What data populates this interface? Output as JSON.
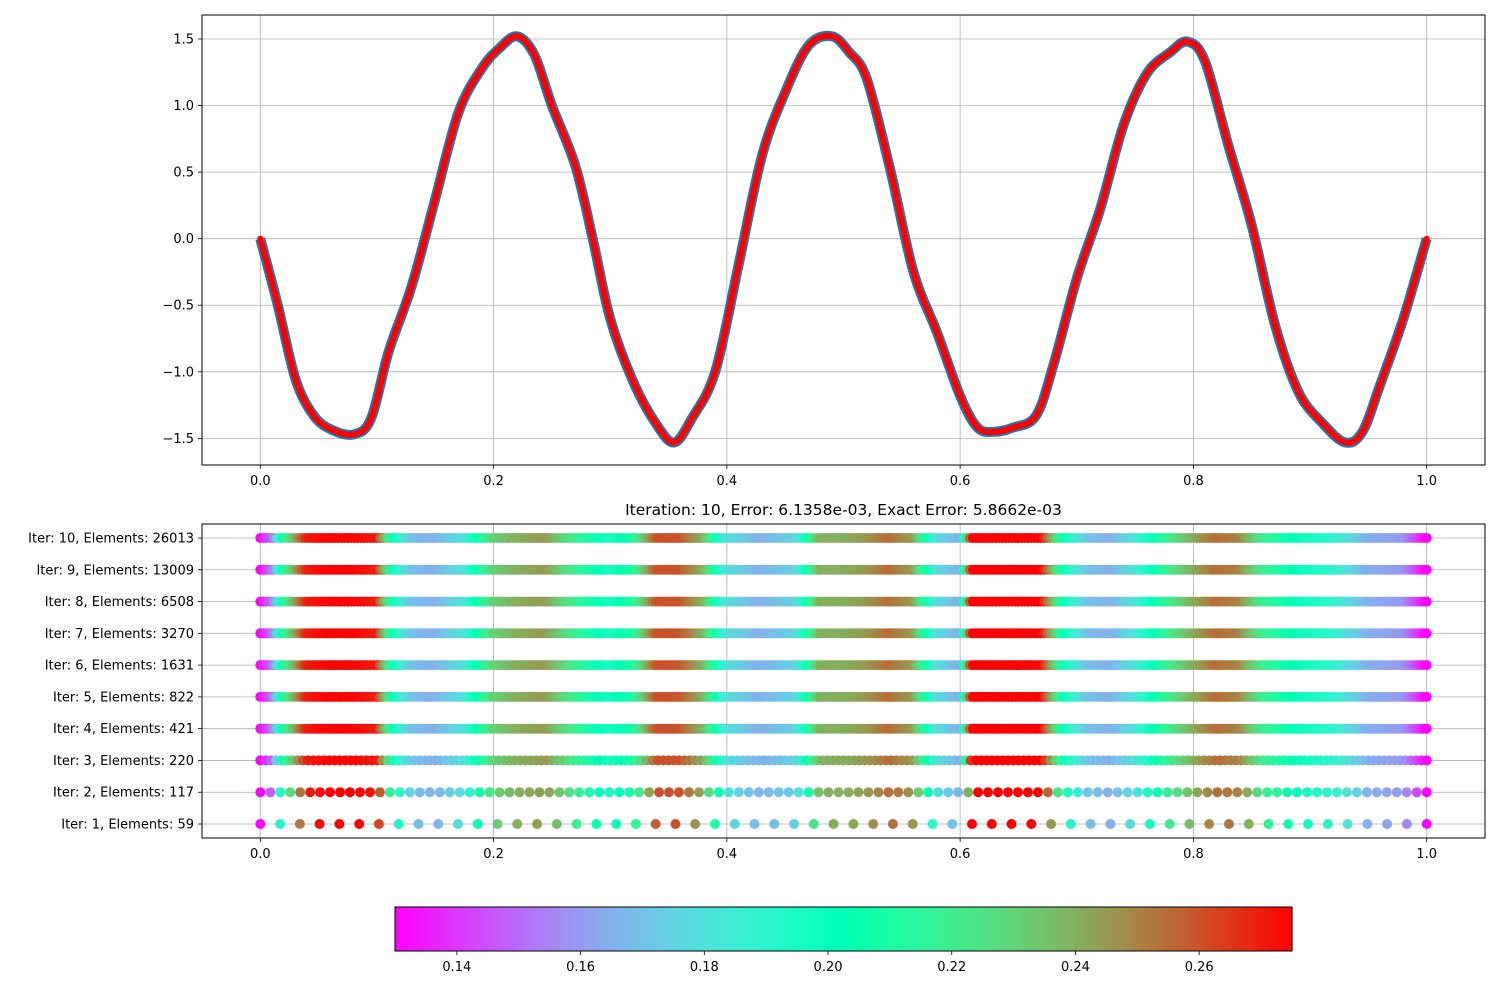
{
  "chart_data": [
    {
      "type": "line",
      "title": "",
      "xlabel": "",
      "ylabel": "",
      "xlim": [
        -0.05,
        1.05
      ],
      "ylim": [
        -1.7,
        1.68
      ],
      "grid": true,
      "x_ticks": [
        "0.0",
        "0.2",
        "0.4",
        "0.6",
        "0.8",
        "1.0"
      ],
      "y_ticks": [
        "−1.5",
        "−1.0",
        "−0.5",
        "0.0",
        "0.5",
        "1.0",
        "1.5"
      ],
      "series": [
        {
          "style": "thick red line over blue outline",
          "color": "#ff0000",
          "outline_color": "#1f77b4",
          "x": [
            0,
            0.015,
            0.03,
            0.045,
            0.06,
            0.08,
            0.095,
            0.11,
            0.13,
            0.15,
            0.17,
            0.19,
            0.205,
            0.22,
            0.235,
            0.25,
            0.27,
            0.285,
            0.3,
            0.32,
            0.34,
            0.355,
            0.37,
            0.39,
            0.41,
            0.43,
            0.45,
            0.47,
            0.49,
            0.505,
            0.52,
            0.54,
            0.56,
            0.58,
            0.6,
            0.615,
            0.63,
            0.645,
            0.665,
            0.68,
            0.7,
            0.72,
            0.74,
            0.76,
            0.78,
            0.795,
            0.81,
            0.83,
            0.85,
            0.87,
            0.89,
            0.91,
            0.93,
            0.945,
            0.96,
            0.98,
            1.0
          ],
          "y": [
            0.0,
            -0.5,
            -1.05,
            -1.32,
            -1.43,
            -1.47,
            -1.35,
            -0.85,
            -0.35,
            0.3,
            0.95,
            1.28,
            1.43,
            1.52,
            1.38,
            1.0,
            0.55,
            0.0,
            -0.6,
            -1.08,
            -1.4,
            -1.53,
            -1.35,
            -1.0,
            -0.2,
            0.62,
            1.1,
            1.45,
            1.52,
            1.4,
            1.2,
            0.52,
            -0.25,
            -0.7,
            -1.18,
            -1.42,
            -1.45,
            -1.42,
            -1.33,
            -0.95,
            -0.3,
            0.22,
            0.85,
            1.24,
            1.4,
            1.48,
            1.33,
            0.7,
            0.1,
            -0.65,
            -1.15,
            -1.38,
            -1.53,
            -1.45,
            -1.1,
            -0.6,
            0.0
          ]
        }
      ]
    },
    {
      "type": "scatter",
      "title": "Iteration: 10, Error: 6.1358e-03, Exact Error: 5.8662e-03",
      "xlim": [
        -0.05,
        1.05
      ],
      "grid": true,
      "x_ticks": [
        "0.0",
        "0.2",
        "0.4",
        "0.6",
        "0.8",
        "1.0"
      ],
      "rows": [
        {
          "label": "Iter: 10, Elements: 26013",
          "elements": 26013
        },
        {
          "label": "Iter: 9, Elements: 13009",
          "elements": 13009
        },
        {
          "label": "Iter: 8, Elements: 6508",
          "elements": 6508
        },
        {
          "label": "Iter: 7, Elements: 3270",
          "elements": 3270
        },
        {
          "label": "Iter: 6, Elements: 1631",
          "elements": 1631
        },
        {
          "label": "Iter: 5, Elements: 822",
          "elements": 822
        },
        {
          "label": "Iter: 4, Elements: 421",
          "elements": 421
        },
        {
          "label": "Iter: 3, Elements: 220",
          "elements": 220
        },
        {
          "label": "Iter: 2, Elements: 117",
          "elements": 117
        },
        {
          "label": "Iter: 1, Elements: 59",
          "elements": 59
        }
      ],
      "color_profile": {
        "x": [
          0.0,
          0.01,
          0.02,
          0.04,
          0.06,
          0.08,
          0.1,
          0.115,
          0.13,
          0.15,
          0.175,
          0.2,
          0.22,
          0.245,
          0.27,
          0.3,
          0.32,
          0.34,
          0.36,
          0.38,
          0.4,
          0.43,
          0.46,
          0.48,
          0.5,
          0.52,
          0.54,
          0.56,
          0.58,
          0.6,
          0.61,
          0.63,
          0.65,
          0.67,
          0.69,
          0.71,
          0.73,
          0.75,
          0.78,
          0.8,
          0.82,
          0.84,
          0.86,
          0.89,
          0.92,
          0.95,
          0.98,
          1.0
        ],
        "value": [
          0.13,
          0.15,
          0.21,
          0.27,
          0.275,
          0.275,
          0.27,
          0.2,
          0.17,
          0.165,
          0.18,
          0.23,
          0.24,
          0.245,
          0.22,
          0.195,
          0.21,
          0.26,
          0.26,
          0.24,
          0.18,
          0.165,
          0.175,
          0.24,
          0.24,
          0.245,
          0.255,
          0.245,
          0.18,
          0.165,
          0.275,
          0.275,
          0.275,
          0.275,
          0.2,
          0.17,
          0.165,
          0.18,
          0.22,
          0.24,
          0.255,
          0.25,
          0.22,
          0.2,
          0.19,
          0.165,
          0.16,
          0.13
        ]
      }
    },
    {
      "type": "colorbar",
      "colormap": "rainbow",
      "range": [
        0.13,
        0.275
      ],
      "tick_values": [
        0.14,
        0.16,
        0.18,
        0.2,
        0.22,
        0.24,
        0.26
      ],
      "tick_labels": [
        "0.14",
        "0.16",
        "0.18",
        "0.20",
        "0.22",
        "0.24",
        "0.26"
      ]
    }
  ]
}
